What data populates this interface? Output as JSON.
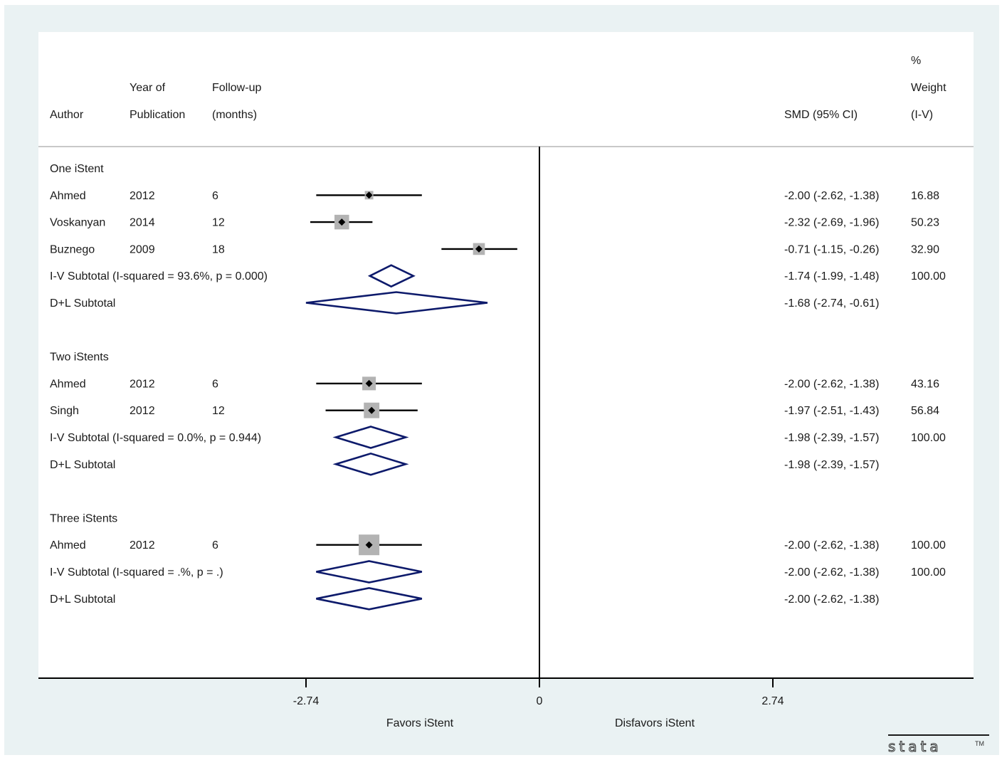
{
  "chart_data": {
    "type": "forest",
    "effect_measure": "SMD",
    "headers": {
      "author": "Author",
      "year": [
        "Year of",
        "Publication"
      ],
      "followup": [
        "Follow-up",
        "(months)"
      ],
      "ci": "SMD (95% CI)",
      "weight": [
        "%",
        "Weight",
        "(I-V)"
      ]
    },
    "x_ticks": [
      {
        "value": -2.74,
        "label": "-2.74"
      },
      {
        "value": 0,
        "label": "0"
      },
      {
        "value": 2.74,
        "label": "2.74"
      }
    ],
    "favors_left": "Favors iStent",
    "favors_right": "Disfavors iStent",
    "groups": [
      {
        "label": "One iStent",
        "studies": [
          {
            "author": "Ahmed",
            "year": "2012",
            "followup": "6",
            "est": -2.0,
            "lo": -2.62,
            "hi": -1.38,
            "ci_text": "-2.00 (-2.62, -1.38)",
            "weight": "16.88",
            "w": 16.88
          },
          {
            "author": "Voskanyan",
            "year": "2014",
            "followup": "12",
            "est": -2.32,
            "lo": -2.69,
            "hi": -1.96,
            "ci_text": "-2.32 (-2.69, -1.96)",
            "weight": "50.23",
            "w": 50.23
          },
          {
            "author": "Buznego",
            "year": "2009",
            "followup": "18",
            "est": -0.71,
            "lo": -1.15,
            "hi": -0.26,
            "ci_text": "-0.71 (-1.15, -0.26)",
            "weight": "32.90",
            "w": 32.9
          }
        ],
        "iv": {
          "label": "I-V Subtotal  (I-squared = 93.6%, p = 0.000)",
          "est": -1.74,
          "lo": -1.99,
          "hi": -1.48,
          "ci_text": "-1.74 (-1.99, -1.48)",
          "weight": "100.00"
        },
        "dl": {
          "label": "D+L Subtotal",
          "est": -1.68,
          "lo": -2.74,
          "hi": -0.61,
          "ci_text": "-1.68 (-2.74, -0.61)",
          "weight": ""
        }
      },
      {
        "label": "Two iStents",
        "studies": [
          {
            "author": "Ahmed",
            "year": "2012",
            "followup": "6",
            "est": -2.0,
            "lo": -2.62,
            "hi": -1.38,
            "ci_text": "-2.00 (-2.62, -1.38)",
            "weight": "43.16",
            "w": 43.16
          },
          {
            "author": "Singh",
            "year": "2012",
            "followup": "12",
            "est": -1.97,
            "lo": -2.51,
            "hi": -1.43,
            "ci_text": "-1.97 (-2.51, -1.43)",
            "weight": "56.84",
            "w": 56.84
          }
        ],
        "iv": {
          "label": "I-V Subtotal  (I-squared = 0.0%, p = 0.944)",
          "est": -1.98,
          "lo": -2.39,
          "hi": -1.57,
          "ci_text": "-1.98 (-2.39, -1.57)",
          "weight": "100.00"
        },
        "dl": {
          "label": "D+L Subtotal",
          "est": -1.98,
          "lo": -2.39,
          "hi": -1.57,
          "ci_text": "-1.98 (-2.39, -1.57)",
          "weight": ""
        }
      },
      {
        "label": "Three iStents",
        "studies": [
          {
            "author": "Ahmed",
            "year": "2012",
            "followup": "6",
            "est": -2.0,
            "lo": -2.62,
            "hi": -1.38,
            "ci_text": "-2.00 (-2.62, -1.38)",
            "weight": "100.00",
            "w": 100.0
          }
        ],
        "iv": {
          "label": "I-V Subtotal  (I-squared = .%, p = .)",
          "est": -2.0,
          "lo": -2.62,
          "hi": -1.38,
          "ci_text": "-2.00 (-2.62, -1.38)",
          "weight": "100.00"
        },
        "dl": {
          "label": "D+L Subtotal",
          "est": -2.0,
          "lo": -2.62,
          "hi": -1.38,
          "ci_text": "-2.00 (-2.62, -1.38)",
          "weight": ""
        }
      }
    ],
    "colors": {
      "diamond": "#0d1a6b",
      "box": "#b3b3b3",
      "line": "#000000",
      "background": "#eaf2f3"
    },
    "logo": "stata-tm"
  }
}
